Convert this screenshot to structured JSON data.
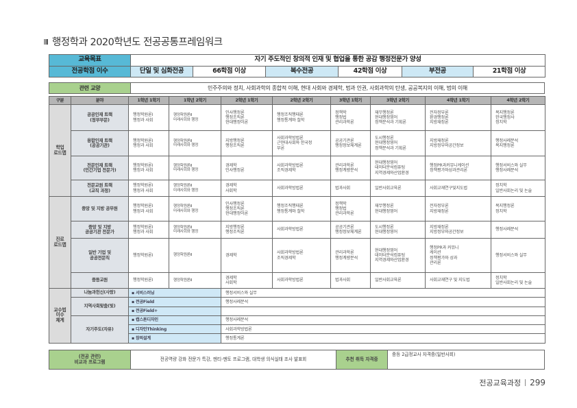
{
  "title": "행정학과 2020학년도 전공공통프레임워크",
  "goal": {
    "label": "교육목표",
    "text": "자기 주도적인 창의적 인재 및 협업을 통한 공감 행정전문가 양성"
  },
  "credits": {
    "label": "전공학점 이수",
    "items": [
      {
        "name": "단일 및 심화전공",
        "value": "66학점 이상"
      },
      {
        "name": "복수전공",
        "value": "42학점 이상"
      },
      {
        "name": "부전공",
        "value": "21학점 이상"
      }
    ]
  },
  "liberal": {
    "label": "관련 교양",
    "text": "민주주의와 정치, 사회과학의 종합적 이해, 현대 사회와 경제학, 법과 인권, 사회과학의 탄생, 공공복지의 이해, 법의 이해"
  },
  "roadmap": {
    "headers": [
      "구분",
      "분야",
      "1학년 1학기",
      "1학년 2학기",
      "2학년 1학기",
      "2학년 2학기",
      "3학년 1학기",
      "3학년 2학기",
      "4학년 1학기",
      "4학년 2학기"
    ],
    "sections": [
      {
        "label": [
          "학업",
          "로드맵"
        ],
        "rows": [
          {
            "field": [
              "공공인재 트랙",
              "(정부부문)"
            ],
            "cells": [
              [
                "행정학원론Ⅰ",
                "행정과 사회"
              ],
              [
                "행정학원론Ⅱ",
                "미래사회와 행정"
              ],
              [
                "인사행정론",
                "행정조직론",
                "현대행정이론"
              ],
              [
                "행정조직행태론",
                "행정통계와 철학"
              ],
              [
                "정책학",
                "행정법",
                "관리과학론"
              ],
              [
                "재무행정론",
                "현대행정영어",
                "정책분석과 기획론"
              ],
              [
                "전자정부론",
                "환경행정론",
                "지방재정론"
              ],
              [
                "복지행정론",
                "한국행정사",
                "정치학"
              ]
            ]
          },
          {
            "field": [
              "융합인재 트랙",
              "(공공기관)"
            ],
            "cells": [
              [
                "행정학원론Ⅰ",
                "행정과 사회"
              ],
              [
                "행정학원론Ⅱ",
                "미래사회와 행정"
              ],
              [
                "지방행정론",
                "행정조직론"
              ],
              [
                "사회과학방법론",
                "근현대사회와 한국정",
                "부론"
              ],
              [
                "공공기관론",
                "행정정보체계론"
              ],
              [
                "도시행정론",
                "현대행정영어",
                "정책분석과 기획론"
              ],
              [
                "지방재정론",
                "지방정부와공간정보"
              ],
              [
                "행정사례분석",
                "복지행정론"
              ]
            ]
          },
          {
            "field": [
              "전문인재 트랙",
              "(민간기업 전문가)"
            ],
            "cells": [
              [
                "행정학원론Ⅰ",
                "행정과 사회"
              ],
              [
                "행정학원론Ⅱ",
                "미래사회와 행정"
              ],
              [
                "경제학",
                "인사행정론"
              ],
              [
                "사회과학방법론",
                "조직경제학"
              ],
              [
                "관리과학론",
                "행정계량분석"
              ],
              [
                "현대행정영어",
                "데이터분석컴퓨팅",
                "지역경제와산업환경"
              ],
              [
                "행정PR과커뮤니케이션",
                "정책평가와성과관리론"
              ],
              [
                "행정서비스와 실무",
                "행정사례분석"
              ]
            ]
          },
          {
            "field": [
              "전문교원 트랙",
              "(교직 과정)"
            ],
            "cells": [
              [
                "행정학원론Ⅰ",
                "행정과 사회"
              ],
              [
                "행정학원론Ⅱ",
                "미래사회와 행정"
              ],
              [
                "경제학",
                "사회학"
              ],
              [
                "사회과학방법론"
              ],
              [
                "법과사회"
              ],
              [
                "일반사회교육론"
              ],
              [
                "사회교재연구및지도법"
              ],
              [
                "정치학",
                "일반사회논리 및 논술"
              ]
            ]
          }
        ]
      },
      {
        "label": [
          "진로",
          "로드맵"
        ],
        "rows": [
          {
            "field": [
              "중앙 및 지방 공무원"
            ],
            "cells": [
              [
                "행정학원론Ⅰ",
                "행정과 사회"
              ],
              [
                "행정학원론Ⅱ",
                "미래사회와 행정"
              ],
              [
                "인사행정론",
                "행정조직론",
                "현대행정이론"
              ],
              [
                "행정조직행태론",
                "행정통계와 철학"
              ],
              [
                "정책학",
                "행정법",
                "관리과학론"
              ],
              [
                "재무행정론",
                "현대행정영어"
              ],
              [
                "전자정부론",
                "지방재정론"
              ],
              [
                "복지행정론",
                "정치학"
              ]
            ]
          },
          {
            "field": [
              "중앙 및 지방",
              "공공기관 전문가"
            ],
            "cells": [
              [
                "행정학원론Ⅰ",
                "행정과 사회"
              ],
              [
                "행정학원론Ⅱ",
                "미래사회와 행정"
              ],
              [
                "지방행정론",
                "행정조직론"
              ],
              [
                "사회과학방법론"
              ],
              [
                "공공기관론",
                "행정정보체계론"
              ],
              [
                "도시행정론",
                "현대행정영어"
              ],
              [
                "지방재정론",
                "지방정부와공간정보"
              ],
              [
                "행정사례분석"
              ]
            ]
          },
          {
            "field": [
              "일반 기업 및",
              "공공전문직"
            ],
            "cells": [
              [
                "행정학원론Ⅰ"
              ],
              [
                "행정학원론Ⅱ"
              ],
              [
                "경제학"
              ],
              [
                "사회과학방법론",
                "조직경제학"
              ],
              [
                "관리과학론",
                "행정계량분석"
              ],
              [
                "현대행정영어",
                "데이터분석컴퓨팅",
                "지역경제와산업환경"
              ],
              [
                "행정PR과 커뮤니",
                "케이션",
                "정책평가와 성과",
                "관리론"
              ],
              [
                "행정서비스와 실무"
              ]
            ]
          },
          {
            "field": [
              "중등교원"
            ],
            "cells": [
              [
                "행정학원론Ⅰ"
              ],
              [
                "행정학원론Ⅱ"
              ],
              [
                "경제학",
                "사회학"
              ],
              [
                "사회과학방법론"
              ],
              [
                "법과사회"
              ],
              [
                "일반사회교육론"
              ],
              [
                "사회교재연구 및 지도법"
              ],
              [
                "정치학",
                "일반사회논리 및 논술"
              ]
            ]
          }
        ]
      }
    ]
  },
  "teaching": {
    "label": [
      "교수법",
      "이수",
      "체계"
    ],
    "groups": [
      {
        "name": "나눔과헌신(사랑)",
        "items": [
          {
            "method": "▪ 서비스러닝",
            "course": "행정서비스와 실무"
          }
        ]
      },
      {
        "name": "지역사회맞춤(빛)",
        "items": [
          {
            "method": "▪ 전공Field",
            "course": "행정사례분석"
          },
          {
            "method": "▪ 전공Field+",
            "course": ""
          }
        ]
      },
      {
        "name": "자기주도(자유)",
        "items": [
          {
            "method": "▪ 캡스톤디자인",
            "course": "행정사례분석"
          },
          {
            "method": "▪ 디자인Thinking",
            "course": "사회과학방법론"
          },
          {
            "method": "▪ 창의설계",
            "course": "행정통계론"
          }
        ]
      }
    ]
  },
  "extra": {
    "label": [
      "(전공 관련)",
      "비교과 프로그램"
    ],
    "text": "전공역량 강화 전문가 특강, 멘티-멘토 프로그램, 대학생 의식실태 조사 발표회",
    "cert_label": "추천 취득 자격증",
    "cert_text": "중등 2급정교사 자격증(일반사회)"
  },
  "footer": {
    "section": "전공교육과정",
    "page": "299"
  },
  "colors": {
    "goal_header": "#57b9d6",
    "light_blue": "#cde8f5",
    "green": "#a9d18e",
    "header_gray": "#b5b5b5"
  }
}
